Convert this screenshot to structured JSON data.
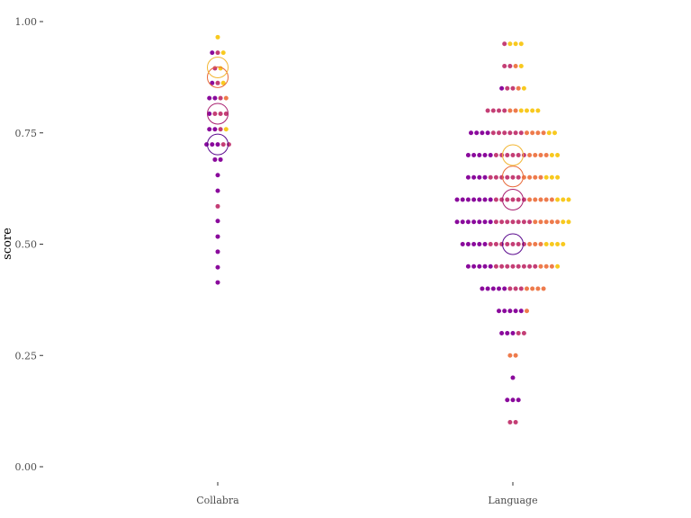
{
  "chart_data": {
    "type": "scatter",
    "subtype": "dotplot",
    "title": "",
    "xlabel": "",
    "ylabel": "score",
    "ylim": [
      0,
      1
    ],
    "yticks": [
      0.0,
      0.25,
      0.5,
      0.75,
      1.0
    ],
    "ytick_labels": [
      "0.00",
      "0.25",
      "0.50",
      "0.75",
      "1.00"
    ],
    "categories": [
      "Collabra",
      "Language"
    ],
    "grid": false,
    "legend": "none",
    "colors": {
      "purple": "#8a0a9c",
      "magenta": "#c43e75",
      "orange": "#ee7b4c",
      "yellow": "#f8c91f",
      "summary_1": "#5b0a8e",
      "summary_2": "#a81d6e",
      "summary_3": "#e86a3a",
      "summary_4": "#f3b632"
    },
    "groups": [
      {
        "category": "Collabra",
        "bins": [
          {
            "y": 0.965,
            "counts": [
              0,
              0,
              0,
              1
            ]
          },
          {
            "y": 0.93,
            "counts": [
              1,
              1,
              0,
              1
            ]
          },
          {
            "y": 0.895,
            "counts": [
              0,
              1,
              0,
              1
            ]
          },
          {
            "y": 0.862,
            "counts": [
              1,
              1,
              0,
              1
            ]
          },
          {
            "y": 0.828,
            "counts": [
              2,
              1,
              1,
              0
            ]
          },
          {
            "y": 0.793,
            "counts": [
              1,
              3,
              0,
              0
            ]
          },
          {
            "y": 0.758,
            "counts": [
              2,
              1,
              0,
              1
            ]
          },
          {
            "y": 0.724,
            "counts": [
              3,
              2,
              0,
              0
            ]
          },
          {
            "y": 0.69,
            "counts": [
              2,
              0,
              0,
              0
            ]
          },
          {
            "y": 0.655,
            "counts": [
              1,
              0,
              0,
              0
            ]
          },
          {
            "y": 0.62,
            "counts": [
              1,
              0,
              0,
              0
            ]
          },
          {
            "y": 0.585,
            "counts": [
              0,
              1,
              0,
              0
            ]
          },
          {
            "y": 0.552,
            "counts": [
              1,
              0,
              0,
              0
            ]
          },
          {
            "y": 0.517,
            "counts": [
              1,
              0,
              0,
              0
            ]
          },
          {
            "y": 0.483,
            "counts": [
              1,
              0,
              0,
              0
            ]
          },
          {
            "y": 0.448,
            "counts": [
              1,
              0,
              0,
              0
            ]
          },
          {
            "y": 0.414,
            "counts": [
              1,
              0,
              0,
              0
            ]
          }
        ],
        "summary_points": [
          {
            "y": 0.724,
            "color_key": "summary_1"
          },
          {
            "y": 0.793,
            "color_key": "summary_2"
          },
          {
            "y": 0.875,
            "color_key": "summary_3"
          },
          {
            "y": 0.897,
            "color_key": "summary_4"
          }
        ]
      },
      {
        "category": "Language",
        "bins": [
          {
            "y": 0.95,
            "counts": [
              0,
              1,
              0,
              3
            ]
          },
          {
            "y": 0.9,
            "counts": [
              0,
              2,
              1,
              1
            ]
          },
          {
            "y": 0.85,
            "counts": [
              1,
              2,
              1,
              1
            ]
          },
          {
            "y": 0.8,
            "counts": [
              0,
              4,
              2,
              4
            ]
          },
          {
            "y": 0.75,
            "counts": [
              4,
              6,
              4,
              2
            ]
          },
          {
            "y": 0.7,
            "counts": [
              5,
              6,
              4,
              2
            ]
          },
          {
            "y": 0.65,
            "counts": [
              4,
              6,
              4,
              3
            ]
          },
          {
            "y": 0.6,
            "counts": [
              7,
              6,
              5,
              3
            ]
          },
          {
            "y": 0.55,
            "counts": [
              7,
              7,
              5,
              2
            ]
          },
          {
            "y": 0.5,
            "counts": [
              5,
              7,
              3,
              4
            ]
          },
          {
            "y": 0.45,
            "counts": [
              5,
              8,
              3,
              1
            ]
          },
          {
            "y": 0.4,
            "counts": [
              5,
              3,
              4,
              0
            ]
          },
          {
            "y": 0.35,
            "counts": [
              5,
              0,
              1,
              0
            ]
          },
          {
            "y": 0.3,
            "counts": [
              3,
              2,
              0,
              0
            ]
          },
          {
            "y": 0.25,
            "counts": [
              0,
              0,
              2,
              0
            ]
          },
          {
            "y": 0.2,
            "counts": [
              1,
              0,
              0,
              0
            ]
          },
          {
            "y": 0.15,
            "counts": [
              3,
              0,
              0,
              0
            ]
          },
          {
            "y": 0.1,
            "counts": [
              0,
              2,
              0,
              0
            ]
          }
        ],
        "summary_points": [
          {
            "y": 0.5,
            "color_key": "summary_1"
          },
          {
            "y": 0.6,
            "color_key": "summary_2"
          },
          {
            "y": 0.652,
            "color_key": "summary_3"
          },
          {
            "y": 0.7,
            "color_key": "summary_4"
          }
        ]
      }
    ]
  }
}
